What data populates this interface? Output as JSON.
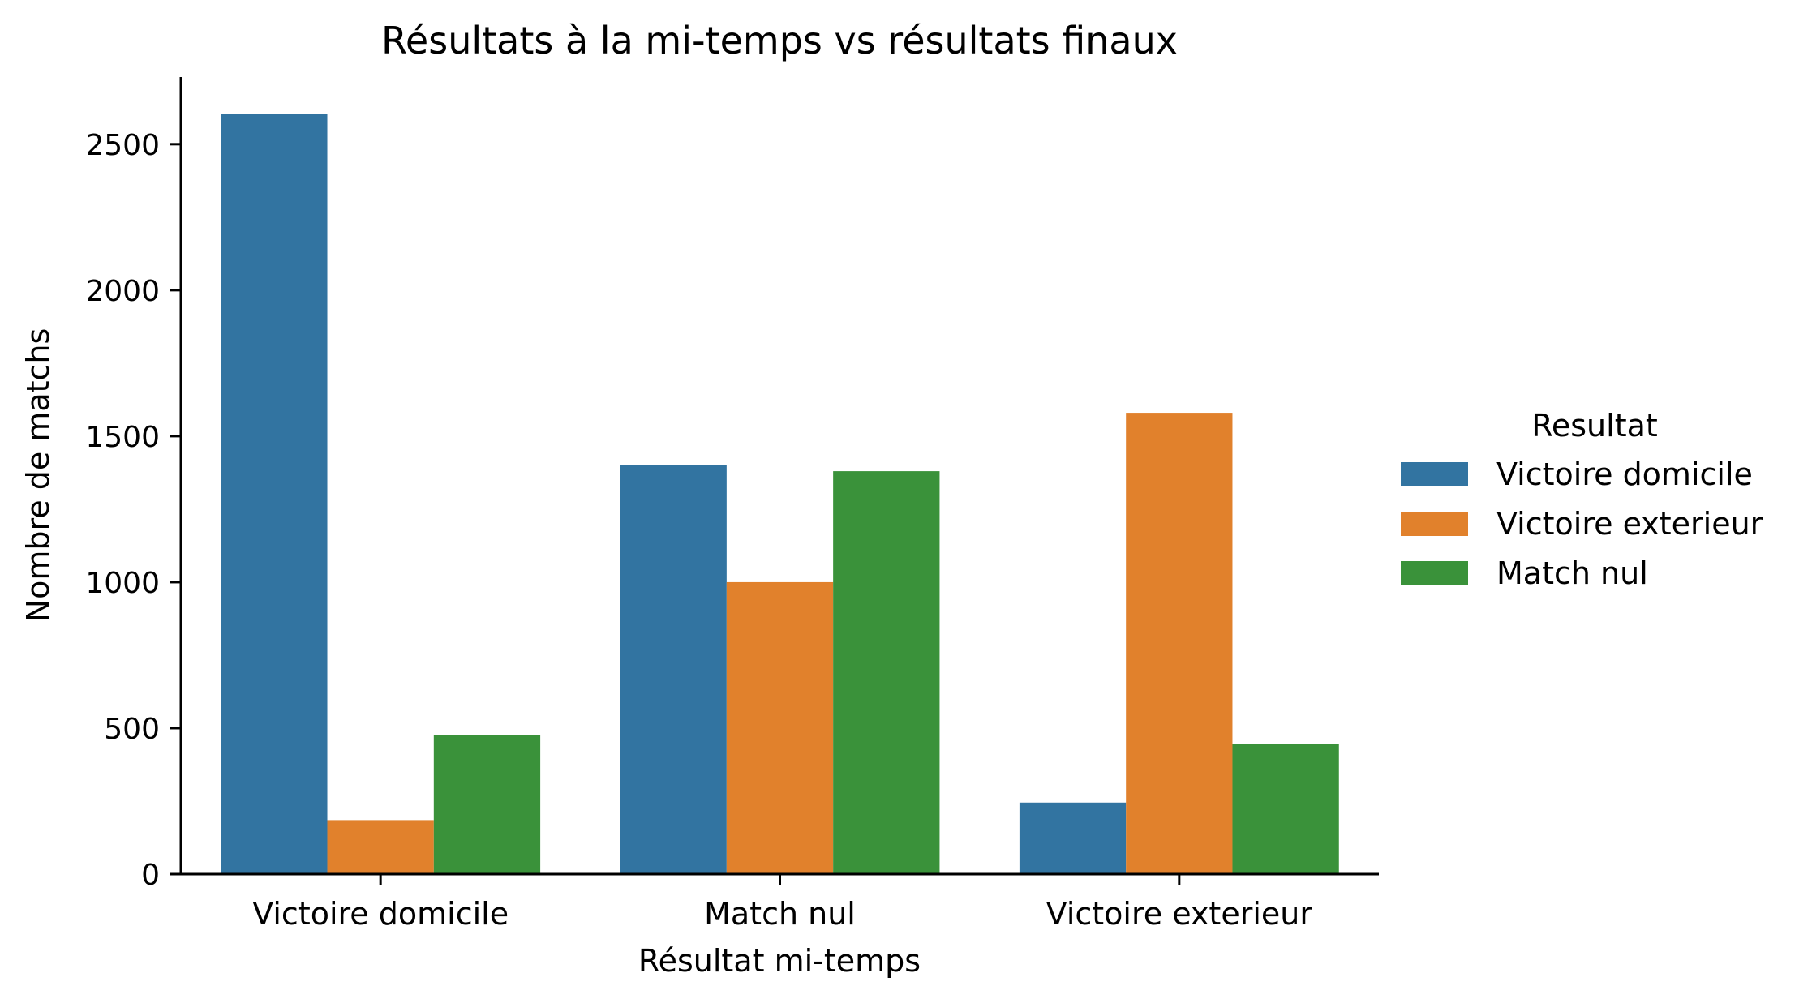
{
  "chart_data": {
    "type": "bar",
    "title": "Résultats à la mi-temps vs résultats finaux",
    "xlabel": "Résultat mi-temps",
    "ylabel": "Nombre de matchs",
    "categories": [
      "Victoire domicile",
      "Match nul",
      "Victoire exterieur"
    ],
    "series": [
      {
        "name": "Victoire domicile",
        "values": [
          2605,
          1400,
          245
        ],
        "color": "#3274a1"
      },
      {
        "name": "Victoire exterieur",
        "values": [
          185,
          1000,
          1580
        ],
        "color": "#e1812c"
      },
      {
        "name": "Match nul",
        "values": [
          475,
          1380,
          445
        ],
        "color": "#3a923a"
      }
    ],
    "ylim": [
      0,
      2730
    ],
    "yticks": [
      0,
      500,
      1000,
      1500,
      2000,
      2500
    ],
    "grid": false,
    "legend": {
      "title": "Resultat",
      "placement": "right"
    }
  }
}
